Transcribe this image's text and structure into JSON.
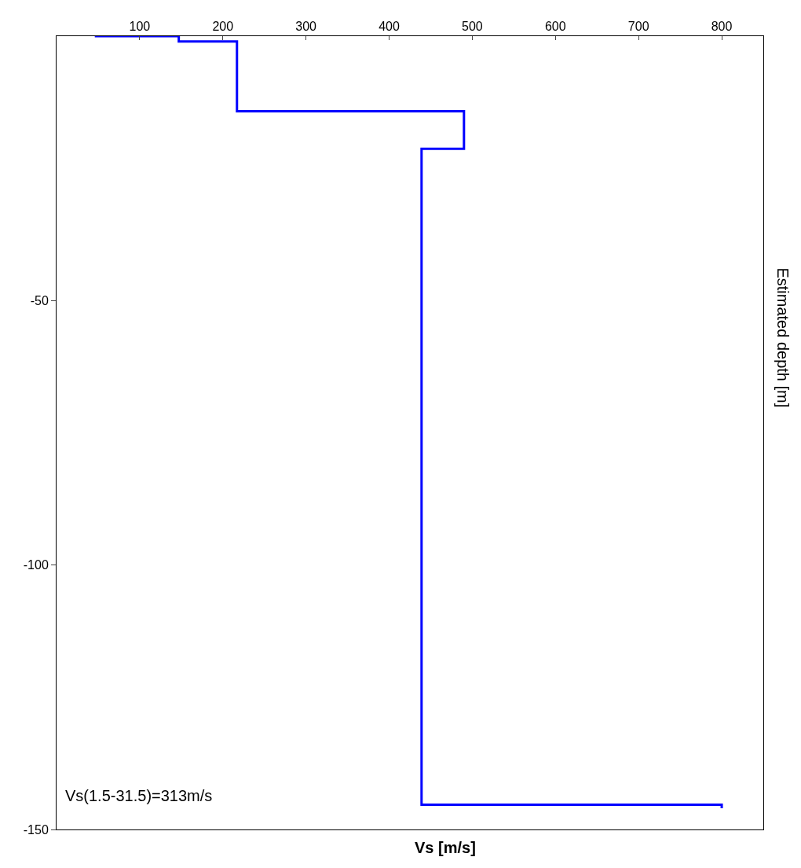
{
  "chart_data": {
    "type": "line",
    "xlabel": "Vs [m/s]",
    "ylabel": "Estimated depth [m]",
    "series": [
      {
        "color": "#0000ff",
        "x": [
          46,
          147,
          147,
          217,
          217,
          490,
          490,
          439,
          439,
          800,
          800
        ],
        "values": [
          0,
          0,
          -1,
          -1,
          -14.2,
          -14.2,
          -21.3,
          -21.3,
          -145.3,
          -145.3,
          -146
        ]
      }
    ],
    "xlim": [
      0,
      850
    ],
    "xticks": [
      100,
      200,
      300,
      400,
      500,
      600,
      700,
      800
    ],
    "ylim": [
      -150,
      0
    ],
    "yticks": [
      -150,
      -100,
      -50
    ],
    "annotations": [
      {
        "text": "Vs(1.5-31.5)=313m/s"
      }
    ],
    "grid": false,
    "marker": "none",
    "line_style": "solid"
  }
}
